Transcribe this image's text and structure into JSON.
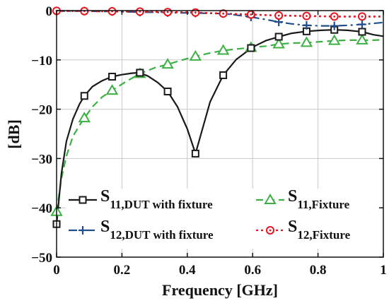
{
  "chart_data": {
    "type": "line",
    "xlabel": "Frequency [GHz]",
    "ylabel": "[dB]",
    "xlim": [
      0,
      1
    ],
    "ylim": [
      -50,
      0
    ],
    "xticks": [
      0,
      0.2,
      0.4,
      0.6,
      0.8,
      1
    ],
    "xtick_labels": [
      "0",
      "0.2",
      "0.4",
      "0.6",
      "0.8",
      "1"
    ],
    "yticks": [
      0,
      -10,
      -20,
      -30,
      -40,
      -50
    ],
    "ytick_labels": [
      "0",
      "−10",
      "−20",
      "−30",
      "−40",
      "−50"
    ],
    "grid": true,
    "legend_position": "bottom-left",
    "series": [
      {
        "name": "S11,DUT with fixture",
        "name_main": "S",
        "name_sub": "11,DUT with fixture",
        "color": "#1a1a1a",
        "line_style": "solid",
        "marker": "square",
        "x": [
          0,
          0.015,
          0.03,
          0.05,
          0.07,
          0.085,
          0.11,
          0.14,
          0.17,
          0.2,
          0.23,
          0.255,
          0.28,
          0.31,
          0.34,
          0.37,
          0.4,
          0.425,
          0.44,
          0.47,
          0.51,
          0.55,
          0.6,
          0.64,
          0.68,
          0.72,
          0.765,
          0.81,
          0.85,
          0.89,
          0.935,
          0.97,
          1.0
        ],
        "y": [
          -43.3,
          -33,
          -26.5,
          -22,
          -19,
          -17.3,
          -15.4,
          -14.2,
          -13.4,
          -13,
          -12.7,
          -12.6,
          -13.3,
          -14.6,
          -16.4,
          -19.5,
          -24,
          -29,
          -25.5,
          -18.5,
          -13.1,
          -9.9,
          -7.4,
          -6.1,
          -5.3,
          -4.6,
          -4.2,
          -4.0,
          -3.9,
          -4.0,
          -4.3,
          -4.9,
          -5.2
        ],
        "marker_x": [
          0,
          0.085,
          0.17,
          0.255,
          0.34,
          0.425,
          0.51,
          0.595,
          0.68,
          0.765,
          0.85,
          0.935
        ],
        "marker_y": [
          -43.3,
          -17.3,
          -13.4,
          -12.6,
          -16.4,
          -29.0,
          -13.1,
          -7.6,
          -5.3,
          -4.2,
          -3.9,
          -4.3
        ]
      },
      {
        "name": "S11,Fixture",
        "name_main": "S",
        "name_sub": "11,Fixture",
        "color": "#3cb043",
        "line_style": "dashed",
        "marker": "triangle",
        "x": [
          0,
          0.015,
          0.03,
          0.05,
          0.07,
          0.085,
          0.11,
          0.14,
          0.17,
          0.21,
          0.255,
          0.3,
          0.34,
          0.38,
          0.425,
          0.47,
          0.51,
          0.55,
          0.595,
          0.64,
          0.68,
          0.72,
          0.765,
          0.81,
          0.85,
          0.89,
          0.935,
          0.97,
          1.0
        ],
        "y": [
          -40.8,
          -34,
          -29.5,
          -25.5,
          -23.3,
          -21.8,
          -19.5,
          -17.5,
          -16.2,
          -14.5,
          -12.8,
          -11.6,
          -10.9,
          -10.1,
          -9.3,
          -8.6,
          -8.1,
          -7.8,
          -7.5,
          -7.2,
          -6.8,
          -6.6,
          -6.5,
          -6.3,
          -6.1,
          -6.0,
          -6.0,
          -6.0,
          -5.9
        ],
        "marker_x": [
          0,
          0.085,
          0.17,
          0.255,
          0.34,
          0.425,
          0.51,
          0.595,
          0.68,
          0.765,
          0.85,
          0.935
        ],
        "marker_y": [
          -40.8,
          -21.8,
          -16.2,
          -12.8,
          -10.9,
          -9.3,
          -8.1,
          -7.5,
          -6.8,
          -6.5,
          -6.1,
          -6.0
        ]
      },
      {
        "name": "S12,DUT with fixture",
        "name_main": "S",
        "name_sub": "12,DUT with fixture",
        "color": "#1f4e8c",
        "line_style": "dashdot",
        "marker": "plus",
        "x": [
          0,
          0.085,
          0.17,
          0.255,
          0.34,
          0.425,
          0.51,
          0.55,
          0.595,
          0.64,
          0.68,
          0.72,
          0.765,
          0.81,
          0.85,
          0.89,
          0.935,
          0.97,
          1.0
        ],
        "y": [
          -0.1,
          -0.1,
          -0.2,
          -0.3,
          -0.4,
          -0.5,
          -0.6,
          -0.9,
          -1.3,
          -1.8,
          -2.3,
          -2.7,
          -3.0,
          -3.1,
          -3.1,
          -3.0,
          -2.8,
          -2.6,
          -2.4
        ],
        "marker_x": [
          0,
          0.085,
          0.17,
          0.255,
          0.34,
          0.425,
          0.51,
          0.595,
          0.68,
          0.765,
          0.85,
          0.935
        ],
        "marker_y": [
          -0.1,
          -0.1,
          -0.2,
          -0.3,
          -0.4,
          -0.5,
          -0.6,
          -1.3,
          -2.3,
          -3.0,
          -3.1,
          -2.8
        ]
      },
      {
        "name": "S12,Fixture",
        "name_main": "S",
        "name_sub": "12,Fixture",
        "color": "#e8141e",
        "line_style": "dotted",
        "marker": "circle",
        "x": [
          0,
          0.085,
          0.17,
          0.255,
          0.34,
          0.425,
          0.51,
          0.595,
          0.68,
          0.765,
          0.85,
          0.935,
          1.0
        ],
        "y": [
          -0.05,
          -0.1,
          -0.15,
          -0.2,
          -0.3,
          -0.4,
          -0.6,
          -0.8,
          -1.0,
          -1.1,
          -1.2,
          -1.2,
          -1.2
        ],
        "marker_x": [
          0,
          0.085,
          0.17,
          0.255,
          0.34,
          0.425,
          0.51,
          0.595,
          0.68,
          0.765,
          0.85,
          0.935
        ],
        "marker_y": [
          -0.05,
          -0.1,
          -0.15,
          -0.2,
          -0.3,
          -0.4,
          -0.6,
          -0.8,
          -1.0,
          -1.1,
          -1.2,
          -1.2
        ]
      }
    ]
  }
}
